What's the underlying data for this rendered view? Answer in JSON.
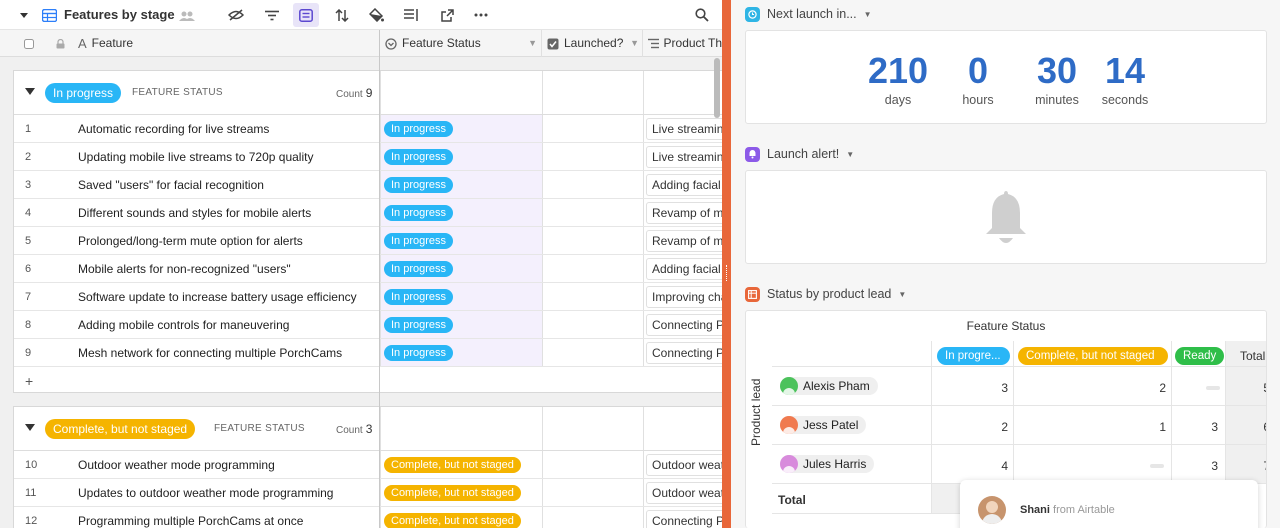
{
  "view": {
    "title": "Features by stage"
  },
  "columns": {
    "feature": "Feature",
    "status": "Feature Status",
    "launched": "Launched?",
    "product": "Product Th"
  },
  "colors": {
    "in_progress": "#29b6f6",
    "complete": "#f5b400",
    "ready": "#2fbe49",
    "accent": "#e8673a",
    "countdown": "#2e6bc6"
  },
  "groups": [
    {
      "label": "In progress",
      "field": "FEATURE STATUS",
      "count_label": "Count",
      "count": "9",
      "rows": [
        {
          "num": "1",
          "name": "Automatic recording for live streams",
          "status": "In progress",
          "product": "Live streaming"
        },
        {
          "num": "2",
          "name": "Updating mobile live streams to 720p quality",
          "status": "In progress",
          "product": "Live streaming"
        },
        {
          "num": "3",
          "name": "Saved \"users\" for facial recognition",
          "status": "In progress",
          "product": "Adding facial"
        },
        {
          "num": "4",
          "name": "Different sounds and styles for mobile alerts",
          "status": "In progress",
          "product": "Revamp of mo"
        },
        {
          "num": "5",
          "name": "Prolonged/long-term mute option for alerts",
          "status": "In progress",
          "product": "Revamp of mo"
        },
        {
          "num": "6",
          "name": "Mobile alerts for non-recognized \"users\"",
          "status": "In progress",
          "product": "Adding facial"
        },
        {
          "num": "7",
          "name": "Software update to increase battery usage efficiency",
          "status": "In progress",
          "product": "Improving cha"
        },
        {
          "num": "8",
          "name": "Adding mobile controls for maneuvering",
          "status": "In progress",
          "product": "Connecting Po"
        },
        {
          "num": "9",
          "name": "Mesh network for connecting multiple PorchCams",
          "status": "In progress",
          "product": "Connecting Po"
        }
      ],
      "add_symbol": "+"
    },
    {
      "label": "Complete, but not staged",
      "field": "FEATURE STATUS",
      "count_label": "Count",
      "count": "3",
      "rows": [
        {
          "num": "10",
          "name": "Outdoor weather mode programming",
          "status": "Complete, but not staged",
          "product": "Outdoor weat"
        },
        {
          "num": "11",
          "name": "Updates to outdoor weather mode programming",
          "status": "Complete, but not staged",
          "product": "Outdoor weat"
        },
        {
          "num": "12",
          "name": "Programming multiple PorchCams at once",
          "status": "Complete, but not staged",
          "product": "Connecting Po"
        }
      ]
    }
  ],
  "dashboard": {
    "countdown": {
      "title": "Next launch in...",
      "units": [
        {
          "value": "210",
          "label": "days"
        },
        {
          "value": "0",
          "label": "hours"
        },
        {
          "value": "30",
          "label": "minutes"
        },
        {
          "value": "14",
          "label": "seconds"
        }
      ]
    },
    "alert": {
      "title": "Launch alert!"
    },
    "pivot": {
      "block_title": "Status by product lead",
      "col_title": "Feature Status",
      "row_title": "Product lead",
      "headers": [
        "In progre...",
        "Complete, but not staged",
        "Ready"
      ],
      "total_label": "Total",
      "rows": [
        {
          "name": "Alexis Pham",
          "avatar_color": "#4cc25c",
          "values": [
            "3",
            "2",
            ""
          ],
          "total": "5"
        },
        {
          "name": "Jess Patel",
          "avatar_color": "#f07a4f",
          "values": [
            "2",
            "1",
            "3"
          ],
          "total": "6"
        },
        {
          "name": "Jules Harris",
          "avatar_color": "#d88bdc",
          "values": [
            "4",
            "",
            "3"
          ],
          "total": "7"
        }
      ]
    }
  },
  "chat": {
    "name": "Shani",
    "suffix": "from Airtable"
  }
}
